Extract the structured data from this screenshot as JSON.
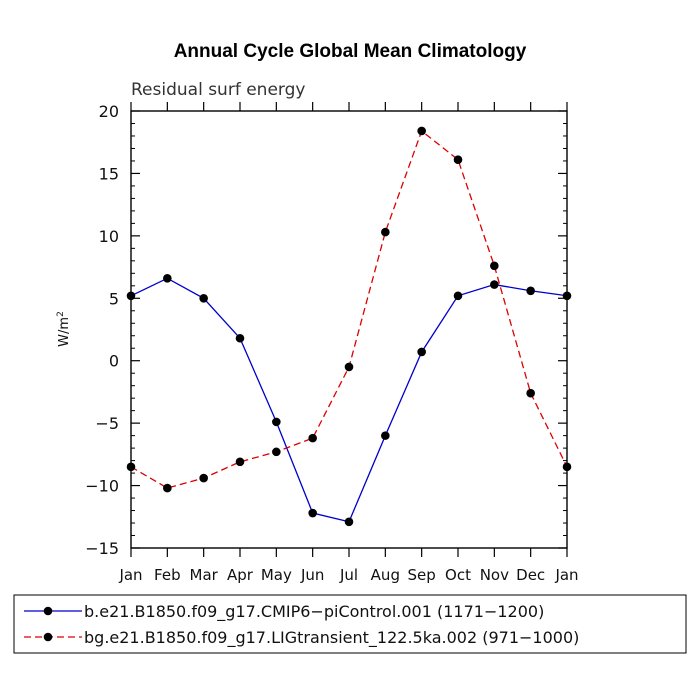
{
  "chart_data": {
    "type": "line",
    "title": "Annual Cycle Global Mean Climatology",
    "subtitle": "Residual surf energy",
    "ylabel": "W/m",
    "ylabel_exponent": "2",
    "xlabel": "",
    "ylim": [
      -15,
      20
    ],
    "yticks": [
      -15,
      -10,
      -5,
      0,
      5,
      10,
      15,
      20
    ],
    "ytick_labels": [
      "−15",
      "−10",
      "−5",
      "0",
      "5",
      "10",
      "15",
      "20"
    ],
    "categories": [
      "Jan",
      "Feb",
      "Mar",
      "Apr",
      "May",
      "Jun",
      "Jul",
      "Aug",
      "Sep",
      "Oct",
      "Nov",
      "Dec",
      "Jan"
    ],
    "legend_position": "bottom",
    "series": [
      {
        "name": "b.e21.B1850.f09_g17.CMIP6−piControl.001 (1171−1200)",
        "color": "#0000cc",
        "dash": "solid",
        "values": [
          5.2,
          6.6,
          5.0,
          1.8,
          -4.9,
          -12.2,
          -12.9,
          -6.0,
          0.7,
          5.2,
          6.1,
          5.6,
          5.2
        ]
      },
      {
        "name": "bg.e21.B1850.f09_g17.LIGtransient_122.5ka.002 (971−1000)",
        "color": "#dd0000",
        "dash": "dashed",
        "values": [
          -8.5,
          -10.2,
          -9.4,
          -8.1,
          -7.3,
          -6.2,
          -0.5,
          10.3,
          18.4,
          16.1,
          7.6,
          -2.6,
          -8.5
        ]
      }
    ]
  }
}
